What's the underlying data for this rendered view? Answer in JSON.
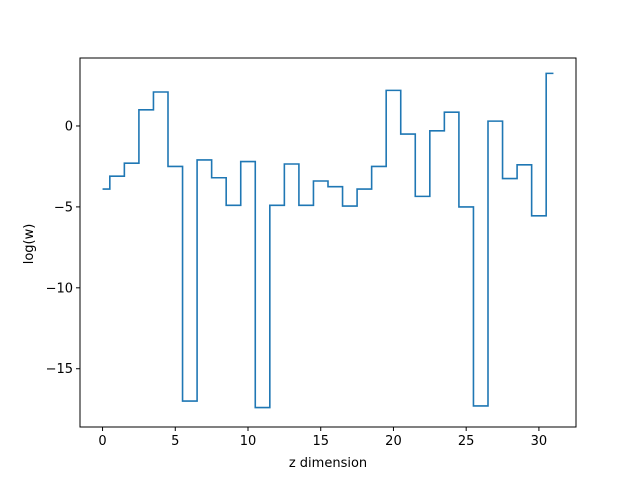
{
  "chart_data": {
    "type": "line",
    "drawstyle": "steps-mid",
    "title": "",
    "xlabel": "z dimension",
    "ylabel": "log(w)",
    "xlim": [
      -1.55,
      32.55
    ],
    "ylim": [
      -18.6,
      4.2
    ],
    "xticks": [
      0,
      5,
      10,
      15,
      20,
      25,
      30
    ],
    "xtick_labels": [
      "0",
      "5",
      "10",
      "15",
      "20",
      "25",
      "30"
    ],
    "yticks": [
      0,
      -5,
      -10,
      -15
    ],
    "ytick_labels": [
      "0",
      "−5",
      "−10",
      "−15"
    ],
    "grid": false,
    "line_color": "#1f77b4",
    "x": [
      0,
      1,
      2,
      3,
      4,
      5,
      6,
      7,
      8,
      9,
      10,
      11,
      12,
      13,
      14,
      15,
      16,
      17,
      18,
      19,
      20,
      21,
      22,
      23,
      24,
      25,
      26,
      27,
      28,
      29,
      30,
      31
    ],
    "y": [
      -3.9,
      -3.1,
      -2.3,
      1.0,
      2.1,
      -2.5,
      -17.0,
      -2.1,
      -3.2,
      -4.9,
      -2.2,
      -17.4,
      -4.9,
      -2.35,
      -4.9,
      -3.4,
      -3.75,
      -4.95,
      -3.9,
      -2.5,
      2.2,
      -0.5,
      -4.35,
      -0.3,
      0.85,
      -5.0,
      -17.3,
      0.3,
      -3.25,
      -2.4,
      -5.55,
      3.25
    ]
  }
}
